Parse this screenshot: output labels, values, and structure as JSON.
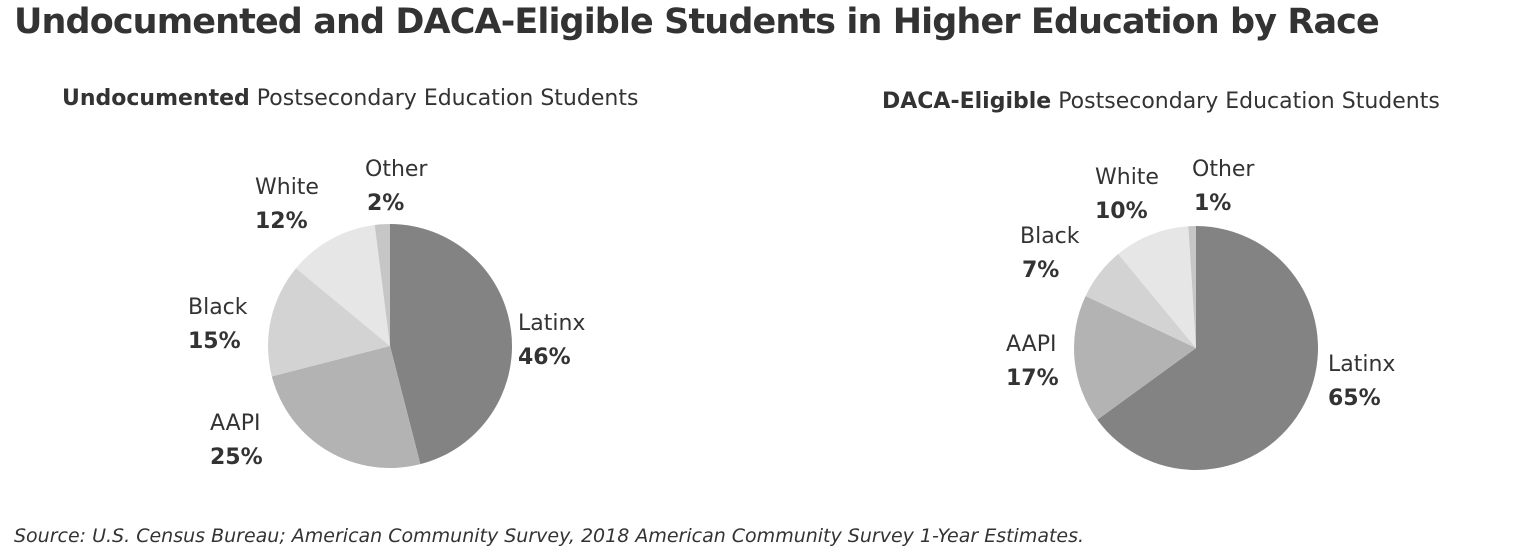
{
  "title": "Undocumented and DACA-Eligible Students in Higher Education by Race",
  "source": "Source: U.S. Census Bureau; American Community Survey, 2018 American Community Survey 1-Year Estimates.",
  "chart_data": [
    {
      "type": "pie",
      "title_bold": "Undocumented",
      "title_rest": " Postsecondary Education Students",
      "slices": [
        {
          "label": "Latinx",
          "value": 46,
          "display": "46%",
          "color": "#838383"
        },
        {
          "label": "AAPI",
          "value": 25,
          "display": "25%",
          "color": "#b3b3b3"
        },
        {
          "label": "Black",
          "value": 15,
          "display": "15%",
          "color": "#d3d3d3"
        },
        {
          "label": "White",
          "value": 12,
          "display": "12%",
          "color": "#e6e6e6"
        },
        {
          "label": "Other",
          "value": 2,
          "display": "2%",
          "color": "#c6c6c6"
        }
      ]
    },
    {
      "type": "pie",
      "title_bold": "DACA-Eligible",
      "title_rest": " Postsecondary Education Students",
      "slices": [
        {
          "label": "Latinx",
          "value": 65,
          "display": "65%",
          "color": "#838383"
        },
        {
          "label": "AAPI",
          "value": 17,
          "display": "17%",
          "color": "#b3b3b3"
        },
        {
          "label": "Black",
          "value": 7,
          "display": "7%",
          "color": "#d3d3d3"
        },
        {
          "label": "White",
          "value": 10,
          "display": "10%",
          "color": "#e6e6e6"
        },
        {
          "label": "Other",
          "value": 1,
          "display": "1%",
          "color": "#c6c6c6"
        }
      ]
    }
  ]
}
